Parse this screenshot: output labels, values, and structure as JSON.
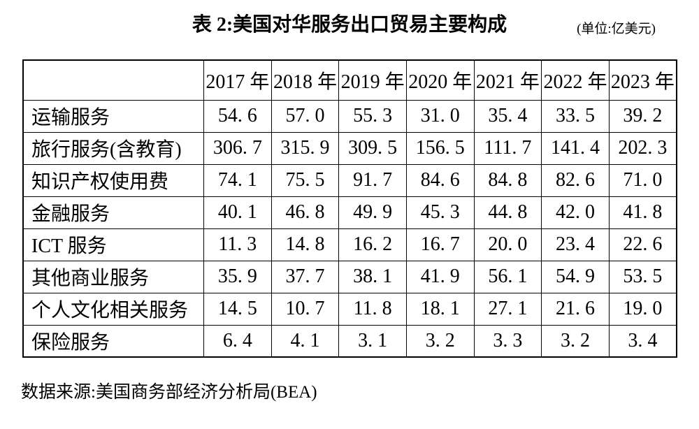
{
  "chart_data": {
    "type": "table",
    "title": "表 2:美国对华服务出口贸易主要构成",
    "unit_note": "(单位:亿美元)",
    "source_note": "数据来源:美国商务部经济分析局(BEA)",
    "columns": [
      "2017 年",
      "2018 年",
      "2019 年",
      "2020 年",
      "2021 年",
      "2022 年",
      "2023 年"
    ],
    "rows": [
      {
        "label": "运输服务",
        "values": [
          54.6,
          57.0,
          55.3,
          31.0,
          35.4,
          33.5,
          39.2
        ]
      },
      {
        "label": "旅行服务(含教育)",
        "values": [
          306.7,
          315.9,
          309.5,
          156.5,
          111.7,
          141.4,
          202.3
        ]
      },
      {
        "label": "知识产权使用费",
        "values": [
          74.1,
          75.5,
          91.7,
          84.6,
          84.8,
          82.6,
          71.0
        ]
      },
      {
        "label": "金融服务",
        "values": [
          40.1,
          46.8,
          49.9,
          45.3,
          44.8,
          42.0,
          41.8
        ]
      },
      {
        "label": "ICT 服务",
        "values": [
          11.3,
          14.8,
          16.2,
          16.7,
          20.0,
          23.4,
          22.6
        ]
      },
      {
        "label": "其他商业服务",
        "values": [
          35.9,
          37.7,
          38.1,
          41.9,
          56.1,
          54.9,
          53.5
        ]
      },
      {
        "label": "个人文化相关服务",
        "values": [
          14.5,
          10.7,
          11.8,
          18.1,
          27.1,
          21.6,
          19.0
        ]
      },
      {
        "label": "保险服务",
        "values": [
          6.4,
          4.1,
          3.1,
          3.2,
          3.3,
          3.2,
          3.4
        ]
      }
    ],
    "layout": {
      "value_format": "one-decimal-space-after-point",
      "text_color": "#000000",
      "background_color": "#ffffff",
      "border_color": "#000000"
    }
  }
}
